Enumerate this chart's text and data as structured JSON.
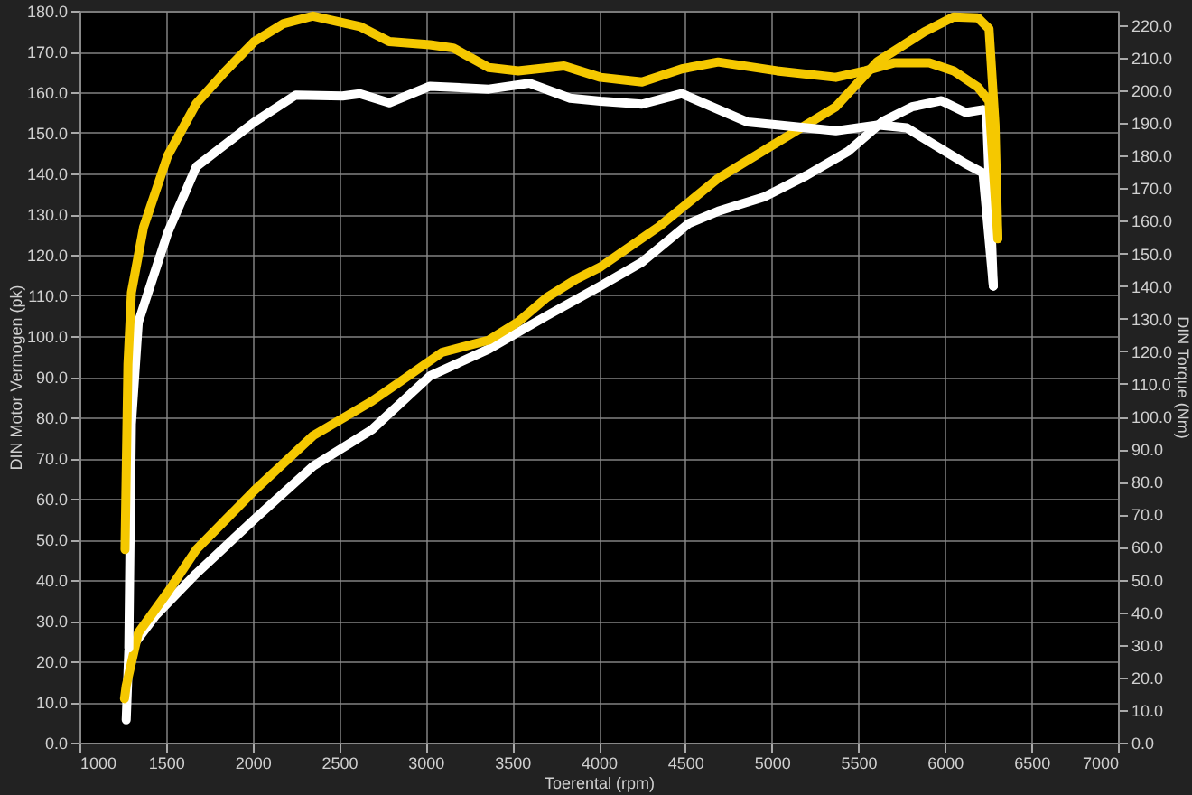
{
  "chart_data": {
    "type": "line",
    "xlabel": "Toerental (rpm)",
    "ylabel": "DIN Motor Vermogen (pk)",
    "y2label": "DIN Torque (Nm)",
    "xlim": [
      1000,
      7000
    ],
    "xticks": [
      1000,
      1500,
      2000,
      2500,
      3000,
      3500,
      4000,
      4500,
      5000,
      5500,
      6000,
      6500,
      7000
    ],
    "ylim": [
      0,
      180
    ],
    "yticks": [
      {
        "value": 0,
        "label": "0.0"
      },
      {
        "value": 10,
        "label": "10.0"
      },
      {
        "value": 20,
        "label": "20.0"
      },
      {
        "value": 30,
        "label": "30.0"
      },
      {
        "value": 40,
        "label": "40.0"
      },
      {
        "value": 50,
        "label": "50.0"
      },
      {
        "value": 60,
        "label": "60.0"
      },
      {
        "value": 70,
        "label": "70.0"
      },
      {
        "value": 80,
        "label": "80.0"
      },
      {
        "value": 90,
        "label": "90.0"
      },
      {
        "value": 100,
        "label": "100.0"
      },
      {
        "value": 110,
        "label": "110.0"
      },
      {
        "value": 120,
        "label": "120.0"
      },
      {
        "value": 130,
        "label": "130.0"
      },
      {
        "value": 140,
        "label": "140.0"
      },
      {
        "value": 150,
        "label": "150.0"
      },
      {
        "value": 160,
        "label": "160.0"
      },
      {
        "value": 170,
        "label": "170.0"
      },
      {
        "value": 180,
        "label": "180.0"
      }
    ],
    "y2lim": [
      0,
      224.4
    ],
    "y2ticks": [
      {
        "value": 0,
        "label": "0.0"
      },
      {
        "value": 10,
        "label": "10.0"
      },
      {
        "value": 20,
        "label": "20.0"
      },
      {
        "value": 30,
        "label": "30.0"
      },
      {
        "value": 40,
        "label": "40.0"
      },
      {
        "value": 50,
        "label": "50.0"
      },
      {
        "value": 60,
        "label": "60.0"
      },
      {
        "value": 70,
        "label": "70.0"
      },
      {
        "value": 80,
        "label": "80.0"
      },
      {
        "value": 90,
        "label": "90.0"
      },
      {
        "value": 100,
        "label": "100.0"
      },
      {
        "value": 110,
        "label": "110.0"
      },
      {
        "value": 120,
        "label": "120.0"
      },
      {
        "value": 130,
        "label": "130.0"
      },
      {
        "value": 140,
        "label": "140.0"
      },
      {
        "value": 150,
        "label": "150.0"
      },
      {
        "value": 160,
        "label": "160.0"
      },
      {
        "value": 170,
        "label": "170.0"
      },
      {
        "value": 180,
        "label": "180.0"
      },
      {
        "value": 190,
        "label": "190.0"
      },
      {
        "value": 200,
        "label": "200.0"
      },
      {
        "value": 210,
        "label": "210.0"
      },
      {
        "value": 220,
        "label": "220.0"
      }
    ],
    "grid": true,
    "series": [
      {
        "color": "#ffffff",
        "x": [
          1270,
          1285,
          1440,
          1675,
          2010,
          2350,
          2690,
          3025,
          3365,
          3700,
          4010,
          4250,
          4520,
          4690,
          4960,
          5200,
          5440,
          5640,
          5810,
          5980,
          6120,
          6220,
          6240,
          6280
        ],
        "values": [
          5.6,
          22.5,
          31.3,
          41.6,
          54.9,
          68,
          77,
          90.2,
          96.8,
          105,
          112.3,
          118.2,
          127.7,
          130.7,
          134.3,
          139.5,
          145.4,
          152.8,
          156.4,
          157.9,
          155,
          155.7,
          155.5,
          112.3
        ]
      },
      {
        "color": "#ffffff",
        "axis": "y2",
        "x": [
          1285,
          1300,
          1340,
          1510,
          1675,
          2010,
          2250,
          2520,
          2620,
          2790,
          3025,
          3365,
          3600,
          3835,
          4010,
          4250,
          4480,
          4860,
          5030,
          5370,
          5610,
          5780,
          5980,
          6120,
          6220,
          6280
        ],
        "values": [
          29,
          97.7,
          128.9,
          156.4,
          176.6,
          190.3,
          198.6,
          198.3,
          199,
          196.2,
          201.3,
          200.4,
          202.2,
          197.6,
          196.7,
          195.8,
          199,
          190.3,
          189.4,
          187.6,
          189.4,
          188.5,
          182,
          177.5,
          174.7,
          140
        ]
      },
      {
        "color": "#f5c800",
        "x": [
          1260,
          1270,
          1340,
          1510,
          1675,
          2010,
          2350,
          2690,
          2860,
          3095,
          3365,
          3535,
          3700,
          3870,
          4010,
          4350,
          4690,
          5030,
          5370,
          5610,
          5880,
          6050,
          6190,
          6255,
          6290,
          6306
        ],
        "values": [
          10.8,
          14,
          27,
          37,
          47.5,
          62,
          75.5,
          84,
          89,
          96,
          99,
          103.5,
          109.5,
          114,
          117,
          127,
          138.8,
          147.6,
          156.4,
          167.5,
          174.8,
          178.5,
          178.3,
          175.6,
          152,
          124
        ]
      },
      {
        "color": "#f5c800",
        "axis": "y2",
        "x": [
          1263,
          1280,
          1300,
          1370,
          1510,
          1675,
          1845,
          2010,
          2180,
          2350,
          2620,
          2790,
          3025,
          3160,
          3365,
          3535,
          3800,
          4010,
          4250,
          4480,
          4690,
          5030,
          5370,
          5540,
          5710,
          5910,
          6050,
          6190,
          6255,
          6306
        ],
        "values": [
          59.2,
          116,
          138,
          158,
          180,
          196,
          206,
          215,
          220.5,
          222.8,
          219.6,
          215,
          214,
          213,
          207,
          206,
          207.5,
          204,
          202.6,
          206.6,
          208.7,
          206,
          204,
          206,
          208.5,
          208.5,
          206,
          201,
          196.7,
          154.5
        ]
      }
    ]
  }
}
